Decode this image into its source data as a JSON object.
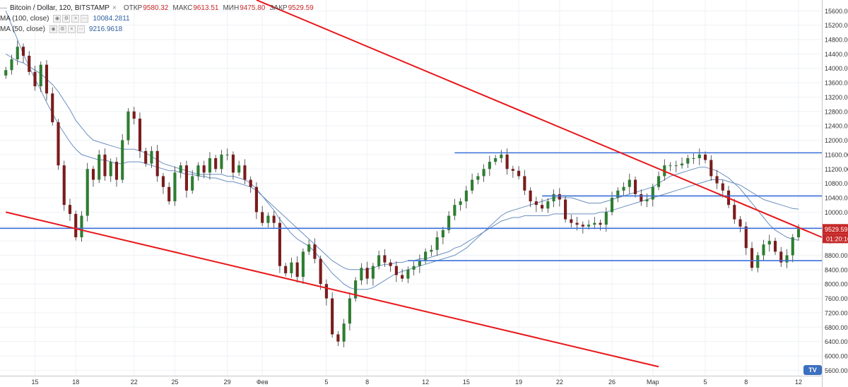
{
  "legend": {
    "collapse_glyph": "—",
    "symbol": "Bitcoin / Dollar, 120, BITSTAMP",
    "close_glyph": "×",
    "open_label": "ОТКР",
    "open_value": "9580.32",
    "high_label": "МАКС",
    "high_value": "9613.51",
    "low_label": "МИН",
    "low_value": "9475.80",
    "close_label": "ЗАКР",
    "close_value": "9529.59",
    "ma100_label": "MA (100, close)",
    "ma100_value": "10084.2811",
    "ma50_label": "MA (50, close)",
    "ma50_value": "9216.9618"
  },
  "logo_text": "TV",
  "colors": {
    "up": "#2e7d32",
    "down": "#7a1c1c",
    "trendline": "#e8161a",
    "hline": "#3a6fd8",
    "ma": "#6b8fbf",
    "grid": "#eef1f5",
    "axis_text": "#333333",
    "price_tag": "#c62828"
  },
  "chart_data": {
    "type": "candlestick",
    "title": "Bitcoin / Dollar, 120, BITSTAMP",
    "ylim": [
      5450,
      15900
    ],
    "xlim": [
      -1,
      140
    ],
    "x_ticks": [
      {
        "x": 5,
        "label": "15"
      },
      {
        "x": 12,
        "label": "18"
      },
      {
        "x": 22,
        "label": "22"
      },
      {
        "x": 29,
        "label": "25"
      },
      {
        "x": 38,
        "label": "29"
      },
      {
        "x": 44,
        "label": "Фев"
      },
      {
        "x": 55,
        "label": "5"
      },
      {
        "x": 62,
        "label": "8"
      },
      {
        "x": 72,
        "label": "12"
      },
      {
        "x": 79,
        "label": "15"
      },
      {
        "x": 88,
        "label": "19"
      },
      {
        "x": 95,
        "label": "22"
      },
      {
        "x": 104,
        "label": "26"
      },
      {
        "x": 111,
        "label": "Мар"
      },
      {
        "x": 120,
        "label": "5"
      },
      {
        "x": 127,
        "label": "8"
      },
      {
        "x": 136,
        "label": "12"
      }
    ],
    "y_ticks": [
      5600,
      6000,
      6400,
      6800,
      7200,
      7600,
      8000,
      8400,
      8800,
      9200,
      9600,
      10000,
      10400,
      10800,
      11200,
      11600,
      12000,
      12400,
      12800,
      13200,
      13600,
      14000,
      14400,
      14800,
      15200,
      15600
    ],
    "y_tick_labels": [
      "5600.00",
      "6000.00",
      "6400.00",
      "6800.00",
      "7200.00",
      "7600.00",
      "8000.00",
      "8400.00",
      "8800.00",
      "9200.00",
      "9600.00",
      "10000.00",
      "10400.00",
      "10800.00",
      "11200.00",
      "11600.00",
      "12000.00",
      "12400.00",
      "12800.00",
      "13200.00",
      "13600.00",
      "14000.00",
      "14400.00",
      "14800.00",
      "15200.00",
      "15600.00"
    ],
    "close_series": [
      13950,
      14250,
      14600,
      14350,
      13900,
      13500,
      14100,
      13300,
      12500,
      11300,
      10200,
      9950,
      9300,
      9900,
      11200,
      10900,
      11600,
      11000,
      11400,
      10900,
      12000,
      12800,
      12600,
      11700,
      11350,
      11700,
      11000,
      10700,
      10300,
      11100,
      11300,
      10600,
      11000,
      11300,
      11100,
      11500,
      11200,
      11600,
      11600,
      11100,
      11300,
      10900,
      10700,
      10000,
      9700,
      9900,
      9700,
      8500,
      8300,
      8600,
      8200,
      8900,
      9100,
      8700,
      8000,
      7600,
      6600,
      6400,
      6900,
      7600,
      8100,
      8450,
      8150,
      8500,
      8800,
      8600,
      8500,
      8250,
      8150,
      8400,
      8500,
      8650,
      8900,
      8950,
      9300,
      9500,
      9900,
      10200,
      10300,
      10600,
      10900,
      11000,
      11200,
      11400,
      11500,
      11600,
      11200,
      11150,
      11000,
      10600,
      10300,
      10200,
      10100,
      10300,
      10500,
      10350,
      9800,
      9700,
      9650,
      9600,
      9650,
      9700,
      9650,
      10000,
      10400,
      10600,
      10700,
      10900,
      10500,
      10300,
      10350,
      10700,
      11000,
      11300,
      11300,
      11300,
      11350,
      11500,
      11500,
      11600,
      11450,
      11000,
      10800,
      10600,
      10200,
      9800,
      9600,
      9000,
      8450,
      8800,
      9100,
      9200,
      8900,
      8600,
      8800,
      9300,
      9530
    ],
    "ma100_series": [
      15600,
      15200,
      14800,
      14400,
      14050,
      13700,
      13400,
      13050,
      12750,
      12450,
      12200,
      11950,
      11750,
      11600,
      11550,
      11500,
      11450,
      11450,
      11400,
      11350,
      11350,
      11400,
      11400,
      11400,
      11350,
      11300,
      11250,
      11200,
      11150,
      11150,
      11100,
      11050,
      11050,
      11000,
      11000,
      10950,
      10950,
      10900,
      10850,
      10850,
      10800,
      10750,
      10700,
      10600,
      10450,
      10300,
      10150,
      10000,
      9850,
      9700,
      9550,
      9400,
      9250,
      9100,
      8950,
      8800,
      8650,
      8550,
      8450,
      8400,
      8400,
      8400,
      8400,
      8450,
      8500,
      8550,
      8550,
      8600,
      8600,
      8650,
      8650,
      8700,
      8700,
      8750,
      8800,
      8850,
      8900,
      9000,
      9050,
      9150,
      9250,
      9350,
      9450,
      9550,
      9650,
      9750,
      9800,
      9850,
      9850,
      9900,
      9900,
      9900,
      9900,
      9900,
      9950,
      9950,
      9950,
      9950,
      9950,
      9950,
      9950,
      9950,
      10000,
      10000,
      10050,
      10100,
      10150,
      10200,
      10250,
      10300,
      10350,
      10400,
      10450,
      10500,
      10550,
      10600,
      10650,
      10700,
      10750,
      10800,
      10850,
      10900,
      10900,
      10900,
      10850,
      10800,
      10750,
      10650,
      10550,
      10450,
      10350,
      10300,
      10250,
      10200,
      10150,
      10100,
      10084
    ],
    "ma50_series": [
      14400,
      14300,
      14200,
      14150,
      14050,
      13950,
      13850,
      13700,
      13550,
      13350,
      13100,
      12850,
      12550,
      12350,
      12150,
      12000,
      11950,
      11900,
      11850,
      11800,
      11750,
      11750,
      11750,
      11700,
      11650,
      11550,
      11450,
      11350,
      11300,
      11250,
      11200,
      11150,
      11100,
      11050,
      11050,
      11050,
      11050,
      11050,
      11000,
      11000,
      10950,
      10900,
      10800,
      10650,
      10450,
      10250,
      10050,
      9800,
      9600,
      9400,
      9250,
      9150,
      9050,
      8900,
      8700,
      8500,
      8300,
      8150,
      8000,
      7900,
      7850,
      7850,
      7850,
      7900,
      8000,
      8100,
      8200,
      8300,
      8350,
      8400,
      8450,
      8500,
      8550,
      8600,
      8650,
      8700,
      8750,
      8800,
      8900,
      9000,
      9150,
      9300,
      9450,
      9600,
      9750,
      9900,
      10000,
      10050,
      10100,
      10150,
      10200,
      10250,
      10300,
      10350,
      10400,
      10400,
      10400,
      10400,
      10350,
      10300,
      10250,
      10250,
      10250,
      10300,
      10350,
      10400,
      10450,
      10500,
      10550,
      10600,
      10650,
      10700,
      10800,
      10900,
      11000,
      11050,
      11100,
      11150,
      11200,
      11250,
      11250,
      11200,
      11150,
      11050,
      10950,
      10800,
      10650,
      10450,
      10250,
      10050,
      9850,
      9650,
      9500,
      9400,
      9300,
      9250,
      9217
    ],
    "drawings": {
      "trendlines": [
        {
          "x1": 43,
          "y1": 15900,
          "x2": 140,
          "y2": 9300
        },
        {
          "x1": 0,
          "y1": 10000,
          "x2": 112,
          "y2": 5700
        }
      ],
      "horizontal_levels": [
        {
          "price": 11650,
          "x1": 77,
          "x2": 140
        },
        {
          "price": 10450,
          "x1": 92,
          "x2": 140
        },
        {
          "price": 9550,
          "x1": -1,
          "x2": 140
        },
        {
          "price": 8650,
          "x1": 69,
          "x2": 140
        }
      ]
    },
    "last_price_label": "9529.59",
    "countdown_label": "01:20:10"
  }
}
